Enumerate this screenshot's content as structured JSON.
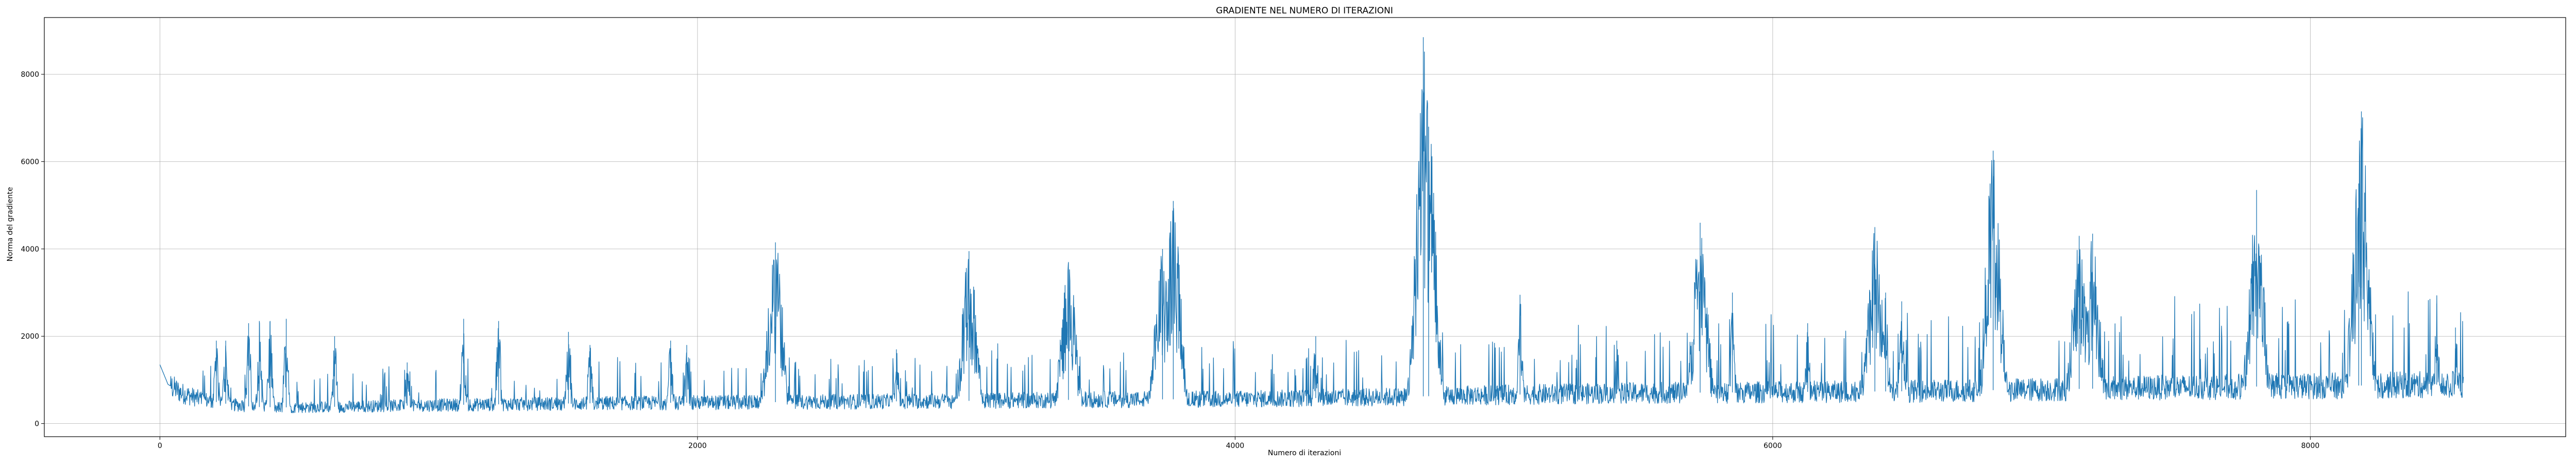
{
  "chart_data": {
    "type": "line",
    "title": "GRADIENTE NEL NUMERO DI ITERAZIONI",
    "xlabel": "Numero di iterazioni",
    "ylabel": "Norma del gradiente",
    "xlim": [
      -430,
      8950
    ],
    "ylim": [
      -300,
      9300
    ],
    "xticks": [
      0,
      2000,
      4000,
      6000,
      8000
    ],
    "yticks": [
      0,
      2000,
      4000,
      6000,
      8000
    ],
    "xtick_labels": [
      "0",
      "2000",
      "4000",
      "6000",
      "8000"
    ],
    "ytick_labels": [
      "0",
      "2000",
      "4000",
      "6000",
      "8000"
    ],
    "grid": true,
    "line_color": "#1f77b4",
    "series": [
      {
        "x_start": 0,
        "x_end": 8570,
        "baseline": [
          [
            0,
            1350
          ],
          [
            30,
            900
          ],
          [
            80,
            700
          ],
          [
            150,
            560
          ],
          [
            250,
            450
          ],
          [
            350,
            380
          ],
          [
            500,
            370
          ],
          [
            700,
            390
          ],
          [
            1000,
            420
          ],
          [
            1500,
            460
          ],
          [
            2000,
            480
          ],
          [
            2500,
            500
          ],
          [
            3000,
            520
          ],
          [
            3500,
            550
          ],
          [
            4000,
            560
          ],
          [
            4500,
            600
          ],
          [
            5000,
            660
          ],
          [
            5500,
            700
          ],
          [
            6000,
            720
          ],
          [
            6500,
            740
          ],
          [
            7000,
            780
          ],
          [
            7500,
            830
          ],
          [
            8000,
            860
          ],
          [
            8300,
            880
          ],
          [
            8570,
            900
          ]
        ],
        "peaks": [
          [
            210,
            1900
          ],
          [
            245,
            1900
          ],
          [
            330,
            2300
          ],
          [
            370,
            2350
          ],
          [
            410,
            2350
          ],
          [
            470,
            2400
          ],
          [
            650,
            2000
          ],
          [
            920,
            1400
          ],
          [
            1130,
            2400
          ],
          [
            1260,
            2350
          ],
          [
            1520,
            2100
          ],
          [
            1600,
            1800
          ],
          [
            1900,
            1900
          ],
          [
            1960,
            1800
          ],
          [
            2290,
            4150
          ],
          [
            2740,
            1700
          ],
          [
            3010,
            3950
          ],
          [
            3380,
            3700
          ],
          [
            3730,
            4000
          ],
          [
            3770,
            5100
          ],
          [
            4300,
            2000
          ],
          [
            4700,
            8850
          ],
          [
            4720,
            6800
          ],
          [
            5060,
            2950
          ],
          [
            5420,
            1900
          ],
          [
            5730,
            4600
          ],
          [
            5850,
            3000
          ],
          [
            6130,
            2300
          ],
          [
            6380,
            4500
          ],
          [
            6420,
            3000
          ],
          [
            6480,
            2800
          ],
          [
            6820,
            6250
          ],
          [
            7140,
            4300
          ],
          [
            7190,
            4350
          ],
          [
            7800,
            5350
          ],
          [
            8190,
            7150
          ],
          [
            8180,
            5500
          ],
          [
            8470,
            2750
          ],
          [
            8540,
            2200
          ]
        ]
      }
    ]
  }
}
